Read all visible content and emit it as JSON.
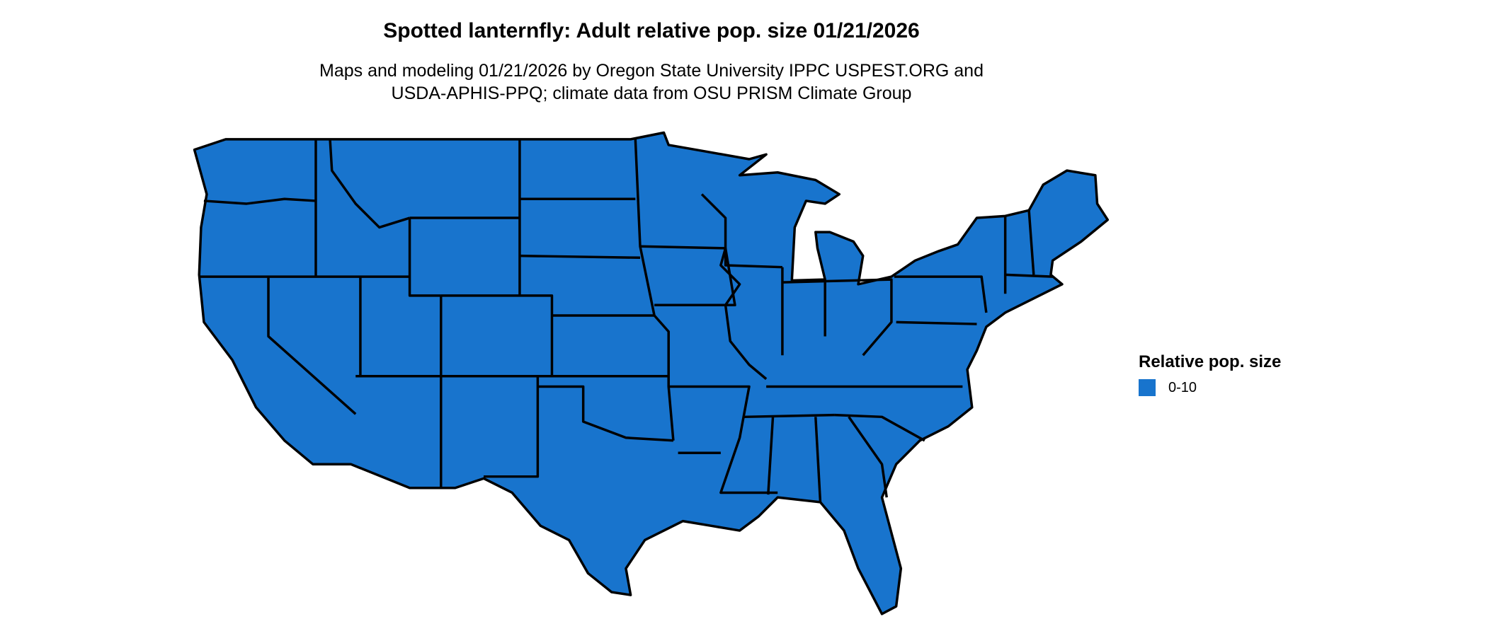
{
  "title": "Spotted lanternfly: Adult relative pop. size 01/21/2026",
  "subtitle_line1": "Maps and modeling 01/21/2026 by Oregon State University IPPC USPEST.ORG and",
  "subtitle_line2": "USDA-APHIS-PPQ; climate data from OSU PRISM Climate Group",
  "map": {
    "region": "Contiguous United States",
    "fill_color": "#1874CD",
    "border_color": "#000000"
  },
  "legend": {
    "title": "Relative pop. size",
    "items": [
      {
        "label": "0-10",
        "color": "#1874CD"
      }
    ]
  }
}
